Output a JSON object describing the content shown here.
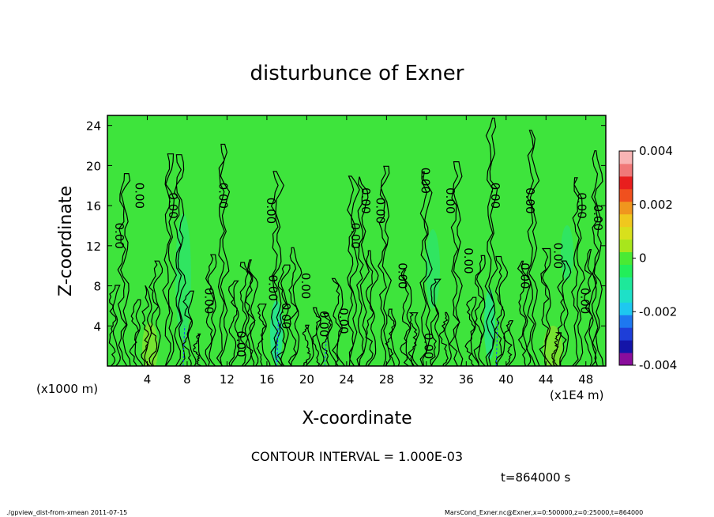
{
  "chart_data": {
    "type": "heatmap",
    "title": "disturbunce of Exner",
    "xlabel": "X-coordinate",
    "ylabel": "Z-coordinate",
    "x_unit_left": "(x1000 m)",
    "x_unit_right": "(x1E4 m)",
    "xlim": [
      0,
      50
    ],
    "ylim": [
      0,
      25
    ],
    "x_ticks": [
      "4",
      "8",
      "12",
      "16",
      "20",
      "24",
      "28",
      "32",
      "36",
      "40",
      "44",
      "48"
    ],
    "y_ticks": [
      "4",
      "8",
      "12",
      "16",
      "20",
      "24"
    ],
    "contour_interval": "CONTOUR INTERVAL = 1.000E-03",
    "time_label": "t=864000 s",
    "contour_label": "0.00",
    "contour_label_positions": [
      [
        0.8,
        13
      ],
      [
        2.8,
        17
      ],
      [
        6.2,
        16
      ],
      [
        9.8,
        6.5
      ],
      [
        11.2,
        17
      ],
      [
        13,
        2.2
      ],
      [
        16,
        15.5
      ],
      [
        16.2,
        7.8
      ],
      [
        17.5,
        5
      ],
      [
        19.5,
        8
      ],
      [
        21.3,
        4.2
      ],
      [
        23.3,
        4.5
      ],
      [
        24.5,
        13
      ],
      [
        25.5,
        16.5
      ],
      [
        27,
        15.5
      ],
      [
        29.2,
        9
      ],
      [
        31.5,
        18.5
      ],
      [
        31.8,
        2
      ],
      [
        34,
        16.5
      ],
      [
        35.8,
        10.5
      ],
      [
        38.5,
        17
      ],
      [
        41.5,
        9
      ],
      [
        42,
        16.5
      ],
      [
        44.8,
        11
      ],
      [
        47.2,
        16
      ],
      [
        47.5,
        6.5
      ],
      [
        48.8,
        14.8
      ]
    ],
    "colorbar": {
      "min": -0.004,
      "max": 0.004,
      "tick_labels": [
        "0.004",
        "0.002",
        "0",
        "-0.002",
        "-0.004"
      ],
      "tick_values": [
        0.004,
        0.002,
        0,
        -0.002,
        -0.004
      ],
      "colors": [
        "#8a0d9c",
        "#1414a8",
        "#1e3ed8",
        "#1e78f0",
        "#1ec8f0",
        "#1ee0c8",
        "#1ee89a",
        "#22ee5a",
        "#4aea34",
        "#a8e61c",
        "#d8e01c",
        "#f0c81e",
        "#f0961e",
        "#f0501e",
        "#e81e1e",
        "#f07878",
        "#f8b4b4"
      ]
    },
    "field_color": "#3ee43c",
    "footer_left": "./gpview_dist-from-xmean  2011-07-15",
    "footer_right": "MarsCond_Exner.nc@Exner,x=0:500000,z=0:25000,t=864000"
  }
}
